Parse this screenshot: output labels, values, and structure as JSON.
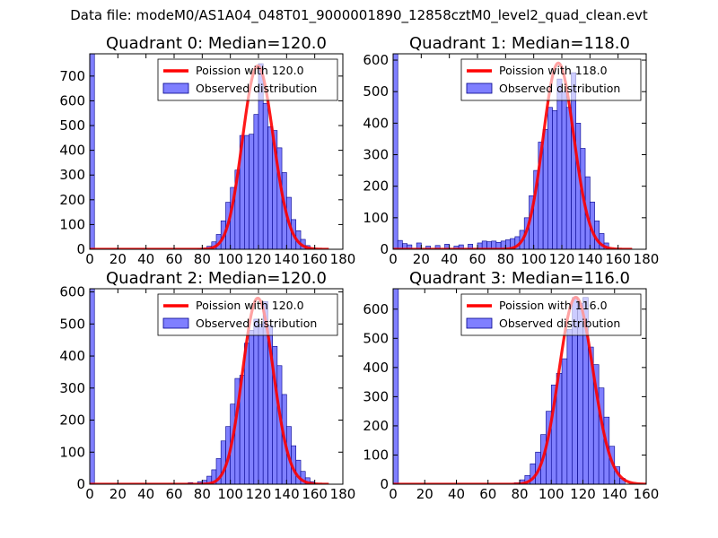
{
  "suptitle": "Data file: modeM0/AS1A04_048T01_9000001890_12858cztM0_level2_quad_clean.evt",
  "colors": {
    "poisson": "#ff0000",
    "hist_fill": "#7f7fff",
    "hist_edge": "#00008b",
    "frame": "#000000"
  },
  "chart_data": [
    {
      "type": "bar",
      "title": "Quadrant 0: Median=120.0",
      "legend": [
        "Poission with 120.0",
        "Observed distribution"
      ],
      "legend_position": "top-right",
      "xlim": [
        0,
        180
      ],
      "ylim": [
        0,
        790
      ],
      "xticks": [
        0,
        20,
        40,
        60,
        80,
        100,
        120,
        140,
        160,
        180
      ],
      "yticks": [
        0,
        100,
        200,
        300,
        400,
        500,
        600,
        700
      ],
      "bin_width": 3.33,
      "hist_x": [
        0,
        76.7,
        80,
        83.3,
        86.7,
        90,
        93.3,
        96.7,
        100,
        103.3,
        106.7,
        110,
        113.3,
        116.7,
        120,
        123.3,
        126.7,
        130,
        133.3,
        136.7,
        140,
        143.3,
        146.7,
        150,
        153.3,
        156.7
      ],
      "hist_counts": [
        790,
        2,
        5,
        12,
        30,
        60,
        115,
        190,
        250,
        320,
        460,
        460,
        465,
        545,
        750,
        590,
        495,
        480,
        410,
        310,
        210,
        120,
        75,
        40,
        15,
        5
      ],
      "poisson_mean": 120.0,
      "poisson_peak": 740
    },
    {
      "type": "bar",
      "title": "Quadrant 1: Median=118.0",
      "legend": [
        "Poission with 118.0",
        "Observed distribution"
      ],
      "legend_position": "top-right",
      "xlim": [
        0,
        180
      ],
      "ylim": [
        0,
        620
      ],
      "xticks": [
        0,
        20,
        40,
        60,
        80,
        100,
        120,
        140,
        160,
        180
      ],
      "yticks": [
        0,
        100,
        200,
        300,
        400,
        500,
        600
      ],
      "bin_width": 3.33,
      "hist_x": [
        0,
        3.3,
        6.7,
        10,
        16.7,
        23.3,
        30,
        36.7,
        43.3,
        46.7,
        53.3,
        60,
        63.3,
        66.7,
        70,
        73.3,
        76.7,
        80,
        83.3,
        86.7,
        90,
        93.3,
        96.7,
        100,
        103.3,
        106.7,
        110,
        113.3,
        116.7,
        120,
        123.3,
        126.7,
        130,
        133.3,
        136.7,
        140,
        143.3,
        146.7,
        150
      ],
      "hist_counts": [
        620,
        28,
        18,
        14,
        20,
        10,
        12,
        16,
        10,
        14,
        16,
        20,
        26,
        24,
        26,
        22,
        26,
        30,
        34,
        40,
        60,
        100,
        170,
        250,
        340,
        380,
        450,
        440,
        540,
        500,
        450,
        560,
        400,
        320,
        230,
        150,
        90,
        50,
        20
      ],
      "poisson_mean": 118.0,
      "poisson_peak": 590
    },
    {
      "type": "bar",
      "title": "Quadrant 2: Median=120.0",
      "legend": [
        "Poission with 120.0",
        "Observed distribution"
      ],
      "legend_position": "top-right",
      "xlim": [
        0,
        180
      ],
      "ylim": [
        0,
        610
      ],
      "xticks": [
        0,
        20,
        40,
        60,
        80,
        100,
        120,
        140,
        160,
        180
      ],
      "yticks": [
        0,
        100,
        200,
        300,
        400,
        500,
        600
      ],
      "bin_width": 3.33,
      "hist_x": [
        0,
        70,
        76.7,
        80,
        83.3,
        86.7,
        90,
        93.3,
        96.7,
        100,
        103.3,
        106.7,
        110,
        113.3,
        116.7,
        120,
        123.3,
        126.7,
        130,
        133.3,
        136.7,
        140,
        143.3,
        146.7,
        150,
        153.3,
        156.7
      ],
      "hist_counts": [
        610,
        5,
        8,
        12,
        25,
        45,
        80,
        135,
        180,
        250,
        330,
        340,
        440,
        480,
        515,
        500,
        570,
        495,
        430,
        370,
        280,
        180,
        120,
        75,
        40,
        20,
        8
      ],
      "poisson_mean": 120.0,
      "poisson_peak": 580
    },
    {
      "type": "bar",
      "title": "Quadrant 3: Median=116.0",
      "legend": [
        "Poission with 116.0",
        "Observed distribution"
      ],
      "legend_position": "top-right",
      "xlim": [
        0,
        160
      ],
      "ylim": [
        0,
        670
      ],
      "xticks": [
        0,
        20,
        40,
        60,
        80,
        100,
        120,
        140,
        160
      ],
      "yticks": [
        0,
        100,
        200,
        300,
        400,
        500,
        600
      ],
      "bin_width": 3.33,
      "hist_x": [
        0,
        76.7,
        80,
        83.3,
        86.7,
        90,
        93.3,
        96.7,
        100,
        103.3,
        106.7,
        110,
        113.3,
        116.7,
        120,
        123.3,
        126.7,
        130,
        133.3,
        136.7,
        140,
        143.3
      ],
      "hist_counts": [
        670,
        5,
        15,
        30,
        70,
        110,
        170,
        250,
        340,
        380,
        430,
        530,
        640,
        620,
        640,
        470,
        410,
        330,
        230,
        130,
        60,
        20
      ],
      "poisson_mean": 116.0,
      "poisson_peak": 640
    }
  ]
}
